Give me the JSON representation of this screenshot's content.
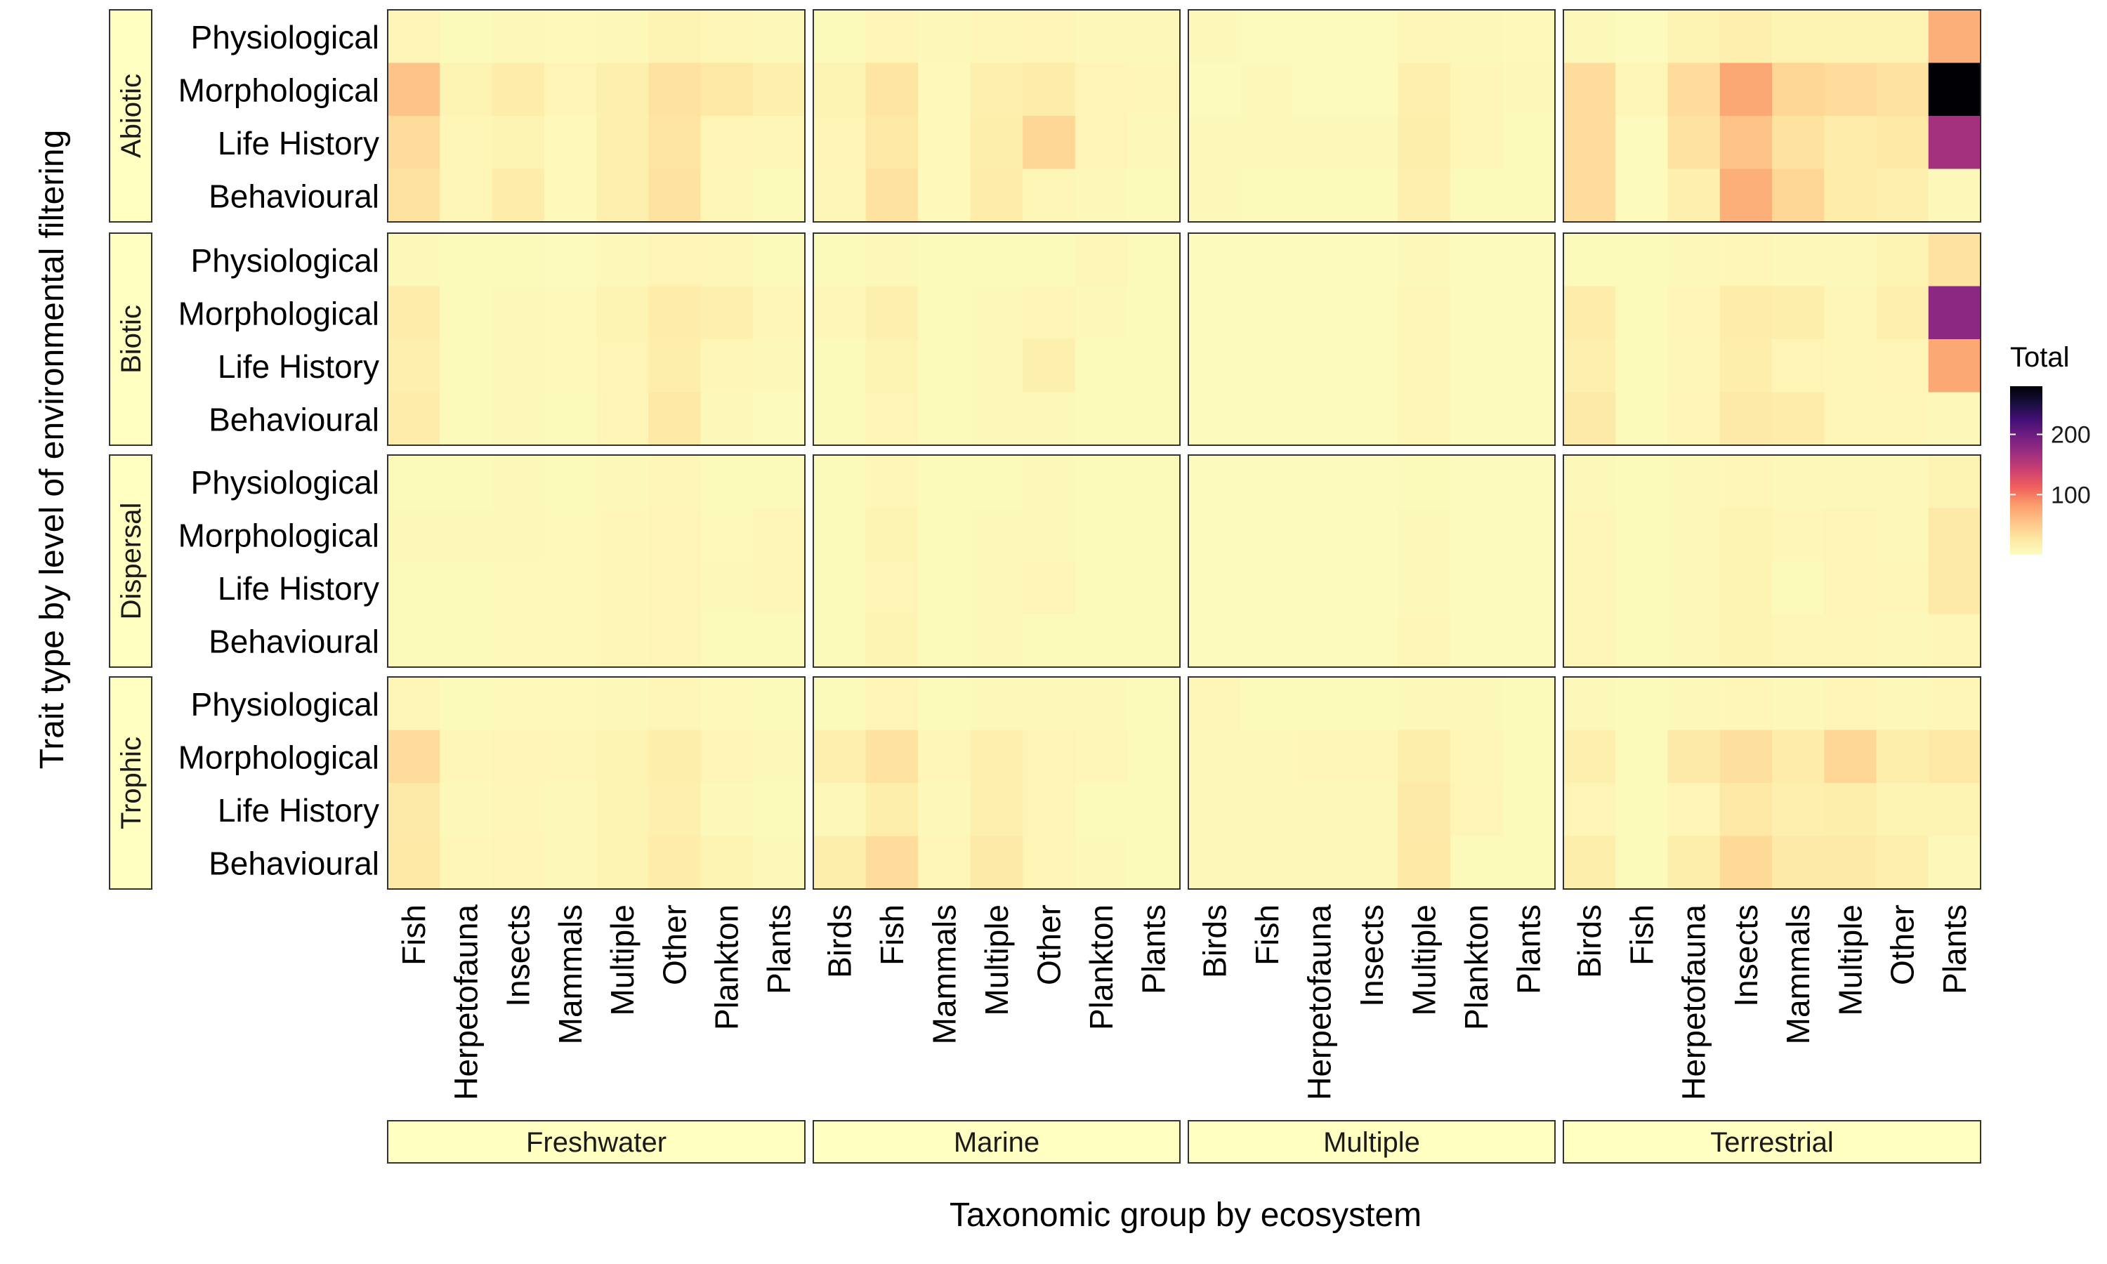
{
  "chart_data": {
    "type": "heatmap",
    "xlabel": "Taxonomic group by ecosystem",
    "ylabel": "Trait type by level of environmental filtering",
    "legend": {
      "title": "Total",
      "ticks": [
        100,
        200
      ],
      "domain": [
        0,
        280
      ],
      "position": "right",
      "palette": [
        "#FCFDBF",
        "#FEE5A2",
        "#FEC287",
        "#FB9B6B",
        "#F1605D",
        "#CD4071",
        "#9E2F7F",
        "#721F81",
        "#440F76",
        "#180F3D",
        "#000004"
      ]
    },
    "row_facets": [
      "Abiotic",
      "Biotic",
      "Dispersal",
      "Trophic"
    ],
    "trait_types": [
      "Physiological",
      "Morphological",
      "Life History",
      "Behavioural"
    ],
    "col_facets": [
      {
        "name": "Freshwater",
        "groups": [
          "Fish",
          "Herpetofauna",
          "Insects",
          "Mammals",
          "Multiple",
          "Other",
          "Plankton",
          "Plants"
        ]
      },
      {
        "name": "Marine",
        "groups": [
          "Birds",
          "Fish",
          "Mammals",
          "Multiple",
          "Other",
          "Plankton",
          "Plants"
        ]
      },
      {
        "name": "Multiple",
        "groups": [
          "Birds",
          "Fish",
          "Herpetofauna",
          "Insects",
          "Multiple",
          "Plankton",
          "Plants"
        ]
      },
      {
        "name": "Terrestrial",
        "groups": [
          "Birds",
          "Fish",
          "Herpetofauna",
          "Insects",
          "Mammals",
          "Multiple",
          "Other",
          "Plants"
        ]
      }
    ],
    "values": {
      "Abiotic": {
        "Freshwater": [
          [
            10,
            4,
            6,
            5,
            7,
            12,
            8,
            6
          ],
          [
            55,
            12,
            20,
            10,
            15,
            30,
            25,
            15
          ],
          [
            35,
            8,
            12,
            5,
            15,
            28,
            10,
            8
          ],
          [
            30,
            8,
            20,
            5,
            15,
            30,
            8,
            4
          ]
        ],
        "Marine": [
          [
            4,
            10,
            6,
            8,
            10,
            6,
            6
          ],
          [
            12,
            28,
            5,
            15,
            20,
            10,
            8
          ],
          [
            10,
            25,
            5,
            18,
            40,
            10,
            6
          ],
          [
            8,
            30,
            5,
            20,
            8,
            6,
            4
          ]
        ],
        "Multiple": [
          [
            6,
            3,
            3,
            3,
            8,
            6,
            5
          ],
          [
            3,
            6,
            3,
            3,
            15,
            8,
            6
          ],
          [
            6,
            6,
            6,
            6,
            18,
            8,
            4
          ],
          [
            6,
            4,
            4,
            4,
            15,
            4,
            4
          ]
        ],
        "Terrestrial": [
          [
            6,
            3,
            12,
            15,
            12,
            12,
            12,
            70
          ],
          [
            35,
            8,
            35,
            75,
            40,
            35,
            30,
            280
          ],
          [
            35,
            3,
            30,
            55,
            30,
            20,
            25,
            165
          ],
          [
            35,
            3,
            15,
            70,
            40,
            20,
            15,
            6
          ]
        ]
      },
      "Biotic": {
        "Freshwater": [
          [
            6,
            4,
            4,
            3,
            6,
            10,
            8,
            4
          ],
          [
            20,
            4,
            6,
            5,
            12,
            20,
            15,
            8
          ],
          [
            15,
            4,
            6,
            5,
            10,
            18,
            8,
            6
          ],
          [
            20,
            4,
            6,
            4,
            10,
            25,
            6,
            3
          ]
        ],
        "Marine": [
          [
            4,
            6,
            4,
            4,
            4,
            8,
            4
          ],
          [
            8,
            15,
            4,
            6,
            10,
            6,
            4
          ],
          [
            4,
            12,
            4,
            6,
            15,
            4,
            4
          ],
          [
            4,
            10,
            4,
            6,
            6,
            4,
            4
          ]
        ],
        "Multiple": [
          [
            3,
            3,
            3,
            3,
            6,
            3,
            3
          ],
          [
            3,
            3,
            3,
            3,
            8,
            3,
            3
          ],
          [
            3,
            3,
            3,
            3,
            8,
            3,
            3
          ],
          [
            3,
            3,
            3,
            3,
            8,
            3,
            3
          ]
        ],
        "Terrestrial": [
          [
            4,
            4,
            6,
            8,
            6,
            6,
            12,
            30
          ],
          [
            20,
            4,
            10,
            20,
            18,
            8,
            15,
            180
          ],
          [
            15,
            4,
            8,
            18,
            10,
            8,
            10,
            75
          ],
          [
            22,
            4,
            10,
            22,
            20,
            8,
            8,
            6
          ]
        ]
      },
      "Dispersal": {
        "Freshwater": [
          [
            4,
            4,
            6,
            4,
            6,
            8,
            4,
            4
          ],
          [
            6,
            6,
            6,
            5,
            8,
            10,
            5,
            8
          ],
          [
            4,
            4,
            5,
            5,
            8,
            10,
            6,
            8
          ],
          [
            4,
            4,
            5,
            5,
            8,
            10,
            4,
            4
          ]
        ],
        "Marine": [
          [
            4,
            8,
            4,
            4,
            6,
            4,
            4
          ],
          [
            4,
            12,
            4,
            6,
            6,
            4,
            4
          ],
          [
            4,
            10,
            4,
            6,
            10,
            4,
            4
          ],
          [
            4,
            12,
            4,
            6,
            4,
            4,
            4
          ]
        ],
        "Multiple": [
          [
            3,
            3,
            3,
            3,
            4,
            3,
            3
          ],
          [
            3,
            3,
            3,
            3,
            6,
            3,
            3
          ],
          [
            3,
            3,
            3,
            3,
            6,
            3,
            3
          ],
          [
            3,
            3,
            3,
            3,
            8,
            3,
            3
          ]
        ],
        "Terrestrial": [
          [
            6,
            4,
            6,
            8,
            6,
            6,
            6,
            12
          ],
          [
            8,
            4,
            6,
            12,
            8,
            10,
            6,
            22
          ],
          [
            8,
            4,
            6,
            12,
            4,
            10,
            8,
            22
          ],
          [
            8,
            4,
            6,
            12,
            8,
            8,
            6,
            8
          ]
        ]
      },
      "Trophic": {
        "Freshwater": [
          [
            8,
            4,
            5,
            5,
            6,
            8,
            5,
            4
          ],
          [
            35,
            8,
            10,
            8,
            12,
            18,
            10,
            6
          ],
          [
            22,
            6,
            8,
            6,
            12,
            15,
            6,
            4
          ],
          [
            25,
            8,
            10,
            6,
            12,
            20,
            12,
            6
          ]
        ],
        "Marine": [
          [
            4,
            10,
            4,
            6,
            6,
            6,
            4
          ],
          [
            15,
            30,
            8,
            15,
            10,
            8,
            4
          ],
          [
            6,
            18,
            6,
            15,
            10,
            4,
            4
          ],
          [
            18,
            35,
            8,
            22,
            10,
            6,
            4
          ]
        ],
        "Multiple": [
          [
            8,
            4,
            4,
            4,
            6,
            6,
            4
          ],
          [
            6,
            6,
            8,
            8,
            18,
            8,
            4
          ],
          [
            6,
            6,
            6,
            6,
            22,
            10,
            4
          ],
          [
            6,
            6,
            6,
            6,
            25,
            4,
            4
          ]
        ],
        "Terrestrial": [
          [
            6,
            4,
            6,
            8,
            6,
            10,
            6,
            8
          ],
          [
            15,
            4,
            22,
            32,
            20,
            40,
            18,
            25
          ],
          [
            10,
            4,
            10,
            25,
            15,
            18,
            12,
            12
          ],
          [
            18,
            4,
            18,
            38,
            22,
            22,
            15,
            6
          ]
        ]
      }
    }
  }
}
